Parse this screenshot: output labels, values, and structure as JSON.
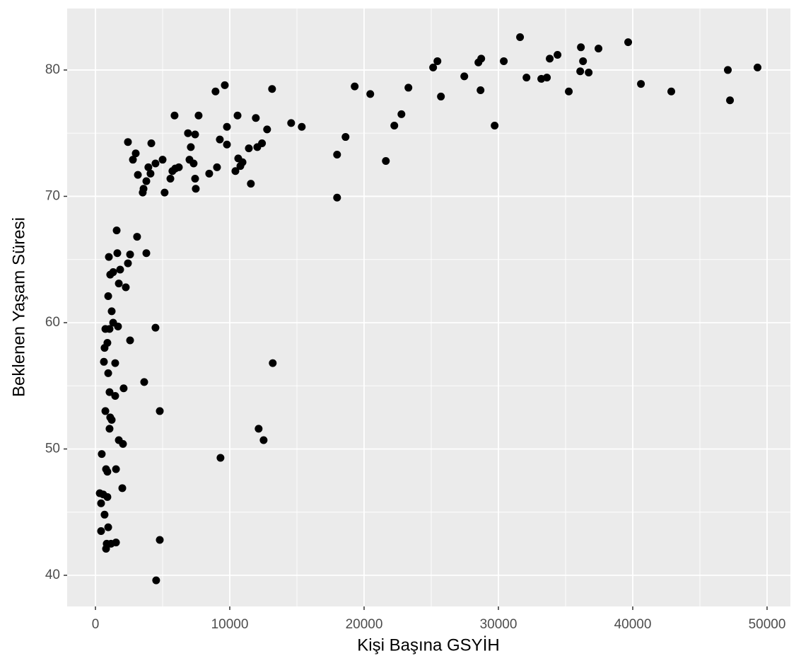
{
  "chart_data": {
    "type": "scatter",
    "x_label": "Kişi Başına GSYİH",
    "y_label": "Beklenen Yaşam Süresi",
    "color": "#000000",
    "grid": true,
    "xlim": [
      -2105,
      51737
    ],
    "ylim": [
      37.535,
      84.87
    ],
    "xticks": [
      0,
      10000,
      20000,
      30000,
      40000,
      50000
    ],
    "yticks": [
      40,
      50,
      60,
      70,
      80
    ],
    "x": [
      49290,
      47240,
      47080,
      42870,
      40610,
      39660,
      37450,
      36720,
      36300,
      36140,
      36090,
      35240,
      34400,
      33820,
      33610,
      33190,
      32090,
      31610,
      30400,
      29720,
      28720,
      28670,
      28510,
      27460,
      25720,
      25460,
      25140,
      23300,
      22780,
      22250,
      21620,
      20460,
      19300,
      18620,
      17990,
      17990,
      15360,
      14570,
      13150,
      13200,
      12780,
      12520,
      12150,
      12400,
      12050,
      11940,
      11570,
      11420,
      10950,
      10790,
      10630,
      10580,
      10420,
      9790,
      9790,
      9630,
      9310,
      9260,
      9050,
      8940,
      8470,
      7680,
      7470,
      7420,
      7420,
      7310,
      7100,
      7000,
      6890,
      6210,
      5940,
      5890,
      5730,
      5580,
      5150,
      5000,
      4790,
      4790,
      4520,
      4470,
      4470,
      4160,
      4100,
      3940,
      3790,
      3790,
      3580,
      3630,
      3520,
      3160,
      3100,
      3000,
      2790,
      2580,
      2580,
      2420,
      2420,
      2260,
      2100,
      2050,
      2000,
      1840,
      1740,
      1680,
      1740,
      1630,
      1580,
      1530,
      1530,
      1470,
      1470,
      1320,
      1320,
      1210,
      1210,
      1160,
      1100,
      1100,
      1050,
      1050,
      1050,
      1000,
      950,
      950,
      950,
      890,
      890,
      890,
      840,
      790,
      740,
      790,
      740,
      680,
      630,
      680,
      580,
      470,
      420,
      420,
      320
    ],
    "values": [
      80.2,
      77.6,
      80.0,
      78.3,
      78.9,
      82.2,
      81.7,
      79.8,
      80.7,
      81.8,
      79.9,
      78.3,
      81.2,
      80.9,
      79.4,
      79.3,
      79.4,
      82.6,
      80.7,
      75.6,
      80.9,
      78.4,
      80.6,
      79.5,
      77.9,
      80.7,
      80.2,
      78.6,
      76.5,
      75.6,
      72.8,
      78.1,
      78.7,
      74.7,
      73.3,
      69.9,
      75.5,
      75.8,
      78.5,
      56.8,
      75.3,
      50.7,
      51.6,
      74.2,
      73.9,
      76.2,
      71.0,
      73.8,
      72.7,
      72.4,
      73.0,
      76.4,
      72.0,
      74.1,
      75.5,
      78.8,
      49.3,
      74.5,
      72.3,
      78.3,
      71.8,
      76.4,
      70.6,
      74.9,
      71.4,
      72.6,
      73.9,
      72.9,
      75.0,
      72.3,
      72.2,
      76.4,
      72.0,
      71.4,
      70.3,
      72.9,
      53.0,
      42.8,
      39.6,
      59.6,
      72.6,
      74.2,
      71.8,
      72.3,
      71.2,
      65.5,
      70.6,
      55.3,
      70.3,
      71.7,
      66.8,
      73.4,
      72.9,
      65.4,
      58.6,
      64.7,
      74.3,
      62.8,
      54.8,
      50.4,
      46.9,
      64.2,
      63.1,
      59.7,
      50.7,
      65.5,
      67.3,
      48.4,
      42.6,
      56.8,
      54.2,
      60.0,
      64.0,
      60.9,
      52.3,
      42.5,
      52.5,
      63.8,
      51.6,
      59.5,
      54.5,
      65.2,
      43.8,
      62.1,
      56.0,
      58.4,
      48.2,
      46.2,
      42.5,
      42.1,
      59.5,
      48.4,
      53.0,
      44.8,
      56.9,
      58.0,
      46.4,
      49.6,
      45.7,
      43.5,
      46.5
    ]
  }
}
